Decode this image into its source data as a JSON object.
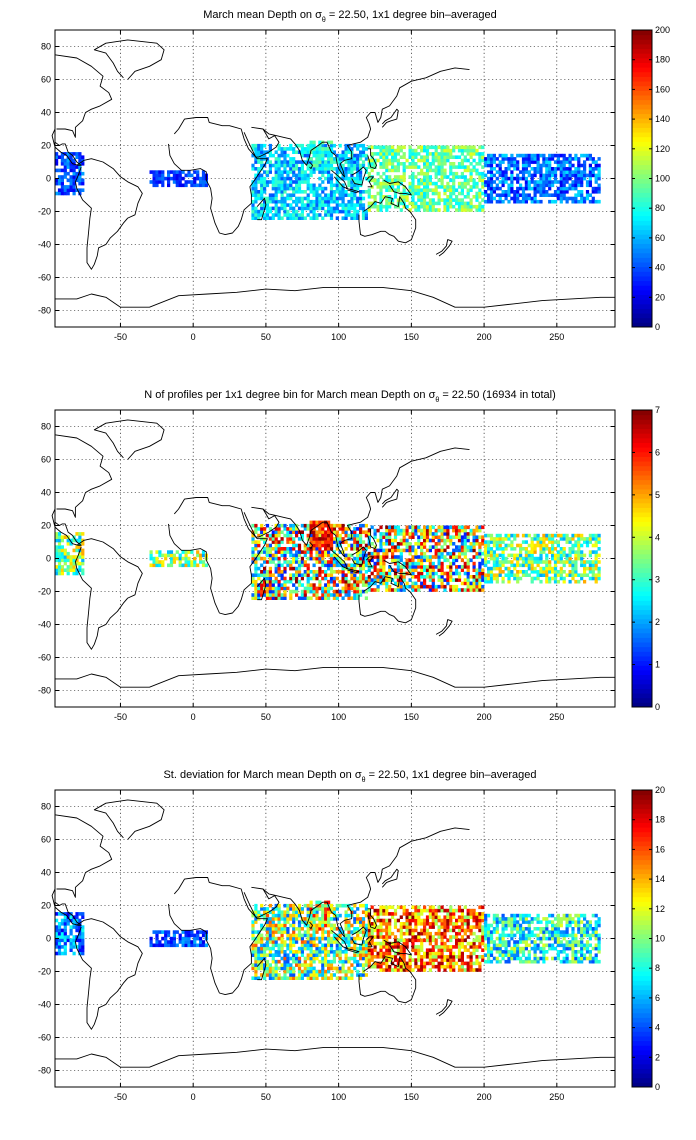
{
  "chart_data": [
    {
      "type": "heatmap",
      "title_pre": "March mean Depth on ",
      "title_sym": "σ",
      "title_sub": "θ",
      "title_post": " = 22.50, 1x1 degree bin–averaged",
      "xlim": [
        -95,
        290
      ],
      "ylim": [
        -90,
        90
      ],
      "x_ticks": [
        -50,
        0,
        50,
        100,
        150,
        200,
        250
      ],
      "y_ticks": [
        -80,
        -60,
        -40,
        -20,
        0,
        20,
        40,
        60,
        80
      ],
      "grid": true,
      "colormap": "jet",
      "colorbar": {
        "min": 0,
        "max": 200,
        "ticks": [
          0,
          20,
          40,
          60,
          80,
          100,
          120,
          140,
          160,
          180,
          200
        ],
        "placement": "right"
      },
      "data_regions": [
        {
          "region": "tropical Pacific east",
          "lon": [
            -95,
            -75
          ],
          "lat": [
            -10,
            15
          ],
          "value_range": [
            20,
            60
          ]
        },
        {
          "region": "tropical Atlantic",
          "lon": [
            -30,
            10
          ],
          "lat": [
            -5,
            5
          ],
          "value_range": [
            20,
            50
          ]
        },
        {
          "region": "Indian Ocean",
          "lon": [
            40,
            120
          ],
          "lat": [
            -25,
            20
          ],
          "value_range": [
            40,
            90
          ]
        },
        {
          "region": "Bay of Bengal",
          "lon": [
            80,
            95
          ],
          "lat": [
            5,
            22
          ],
          "value_range": [
            70,
            100
          ]
        },
        {
          "region": "western Pacific",
          "lon": [
            120,
            200
          ],
          "lat": [
            -20,
            20
          ],
          "value_range": [
            70,
            120
          ]
        },
        {
          "region": "central Pacific",
          "lon": [
            200,
            280
          ],
          "lat": [
            -15,
            15
          ],
          "value_range": [
            20,
            70
          ]
        }
      ]
    },
    {
      "type": "heatmap",
      "title_pre": "N of profiles per 1x1 degree bin for March mean Depth on ",
      "title_sym": "σ",
      "title_sub": "θ",
      "title_post": " = 22.50 (16934 in total)",
      "xlim": [
        -95,
        290
      ],
      "ylim": [
        -90,
        90
      ],
      "x_ticks": [
        -50,
        0,
        50,
        100,
        150,
        200,
        250
      ],
      "y_ticks": [
        -80,
        -60,
        -40,
        -20,
        0,
        20,
        40,
        60,
        80
      ],
      "grid": true,
      "colormap": "jet",
      "colorbar": {
        "min": 0,
        "max": 7,
        "ticks": [
          0,
          1,
          2,
          3,
          4,
          5,
          6,
          7
        ],
        "placement": "right"
      },
      "data_regions": [
        {
          "region": "tropical Pacific east",
          "lon": [
            -95,
            -75
          ],
          "lat": [
            -10,
            15
          ],
          "value_range": [
            2,
            5
          ]
        },
        {
          "region": "tropical Atlantic",
          "lon": [
            -30,
            10
          ],
          "lat": [
            -5,
            5
          ],
          "value_range": [
            2,
            5
          ]
        },
        {
          "region": "Indian Ocean",
          "lon": [
            40,
            120
          ],
          "lat": [
            -25,
            20
          ],
          "value_range": [
            1,
            7
          ]
        },
        {
          "region": "Bay of Bengal",
          "lon": [
            80,
            95
          ],
          "lat": [
            5,
            22
          ],
          "value_range": [
            5,
            7
          ]
        },
        {
          "region": "western Pacific",
          "lon": [
            120,
            200
          ],
          "lat": [
            -20,
            20
          ],
          "value_range": [
            1,
            7
          ]
        },
        {
          "region": "central Pacific",
          "lon": [
            200,
            280
          ],
          "lat": [
            -15,
            15
          ],
          "value_range": [
            2,
            5
          ]
        }
      ]
    },
    {
      "type": "heatmap",
      "title_pre": "St. deviation for March mean Depth on ",
      "title_sym": "σ",
      "title_sub": "θ",
      "title_post": " = 22.50, 1x1 degree bin–averaged",
      "xlim": [
        -95,
        290
      ],
      "ylim": [
        -90,
        90
      ],
      "x_ticks": [
        -50,
        0,
        50,
        100,
        150,
        200,
        250
      ],
      "y_ticks": [
        -80,
        -60,
        -40,
        -20,
        0,
        20,
        40,
        60,
        80
      ],
      "grid": true,
      "colormap": "jet",
      "colorbar": {
        "min": 0,
        "max": 20,
        "ticks": [
          0,
          2,
          4,
          6,
          8,
          10,
          12,
          14,
          16,
          18,
          20
        ],
        "placement": "right"
      },
      "data_regions": [
        {
          "region": "tropical Pacific east",
          "lon": [
            -95,
            -75
          ],
          "lat": [
            -10,
            15
          ],
          "value_range": [
            2,
            8
          ]
        },
        {
          "region": "tropical Atlantic",
          "lon": [
            -30,
            10
          ],
          "lat": [
            -5,
            5
          ],
          "value_range": [
            2,
            6
          ]
        },
        {
          "region": "Indian Ocean",
          "lon": [
            40,
            120
          ],
          "lat": [
            -25,
            20
          ],
          "value_range": [
            4,
            16
          ]
        },
        {
          "region": "Bay of Bengal",
          "lon": [
            80,
            95
          ],
          "lat": [
            5,
            22
          ],
          "value_range": [
            8,
            18
          ]
        },
        {
          "region": "western Pacific",
          "lon": [
            120,
            200
          ],
          "lat": [
            -20,
            20
          ],
          "value_range": [
            10,
            20
          ]
        },
        {
          "region": "central Pacific",
          "lon": [
            200,
            280
          ],
          "lat": [
            -15,
            15
          ],
          "value_range": [
            4,
            12
          ]
        }
      ]
    }
  ],
  "colors": {
    "axis": "#000000",
    "background": "#ffffff",
    "land_outline": "#000000"
  }
}
